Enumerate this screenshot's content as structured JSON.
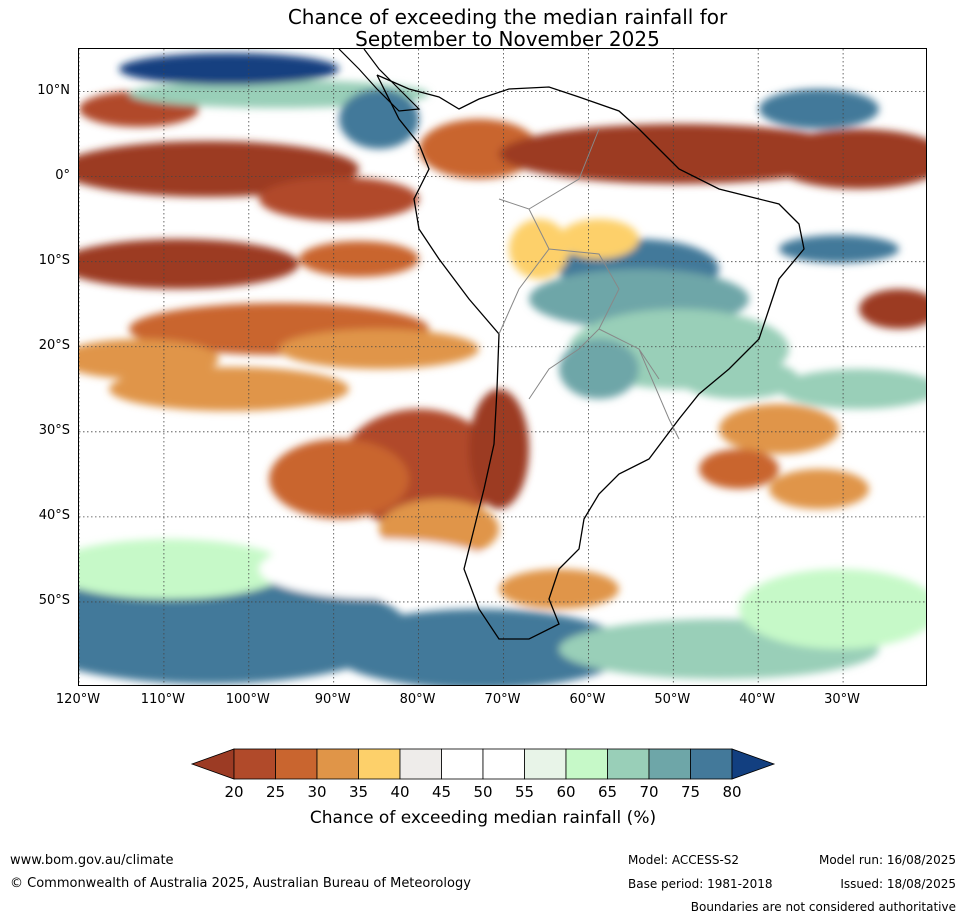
{
  "title": {
    "line1": "Chance of exceeding the median rainfall for",
    "line2": "September to November 2025"
  },
  "map": {
    "lon_range": [
      -120,
      -20
    ],
    "lat_range": [
      -60,
      15
    ],
    "lat_ticks": [
      "10°N",
      "0°",
      "10°S",
      "20°S",
      "30°S",
      "40°S",
      "50°S"
    ],
    "lon_ticks": [
      "120°W",
      "110°W",
      "100°W",
      "90°W",
      "80°W",
      "70°W",
      "60°W",
      "50°W",
      "40°W",
      "30°W"
    ],
    "gridlines": "dotted"
  },
  "colorbar": {
    "ticks": [
      "20",
      "25",
      "30",
      "35",
      "40",
      "45",
      "50",
      "55",
      "60",
      "65",
      "70",
      "75",
      "80"
    ],
    "colors": [
      "#9c3b24",
      "#b14a2a",
      "#c9652f",
      "#e09548",
      "#fdd06a",
      "#eeecea",
      "#ffffff",
      "#ffffff",
      "#e8f4e8",
      "#c6f9c8",
      "#99cfb8",
      "#6ea6a8",
      "#43799a",
      "#123f80"
    ],
    "label": "Chance of exceeding median rainfall (%)"
  },
  "footer": {
    "url": "www.bom.gov.au/climate",
    "copyright": "© Commonwealth of Australia 2025, Australian Bureau of Meteorology",
    "model": "Model: ACCESS-S2",
    "base_period": "Base period: 1981-2018",
    "model_run": "Model run: 16/08/2025",
    "issued": "Issued: 18/08/2025",
    "disclaimer": "Boundaries are not considered authoritative"
  }
}
